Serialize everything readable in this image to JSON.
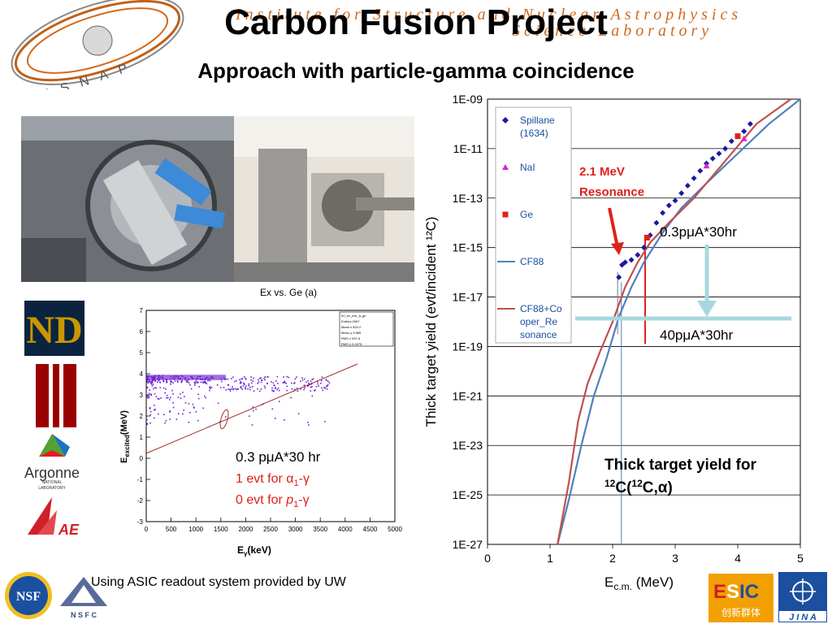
{
  "header": {
    "institute_line1": "Institute for Structure and Nuclear Astrophysics",
    "institute_line2": "Science Laboratory",
    "isnap_logo_letters": "ISNAP"
  },
  "title": "Carbon Fusion Project",
  "subtitle": "Approach with particle-gamma coincidence",
  "left_plot": {
    "title": "Ex vs. Ge (a)",
    "ylabel_main": "E",
    "ylabel_sub": "excited",
    "ylabel_unit": "(MeV)",
    "xlabel_main": "E",
    "xlabel_sub": "γ",
    "xlabel_unit": "(keV)",
    "x_ticks": [
      "0",
      "500",
      "1000",
      "1500",
      "2000",
      "2500",
      "3000",
      "3500",
      "4000",
      "4500",
      "5000"
    ],
    "y_ticks": [
      "7",
      "6",
      "5",
      "4",
      "3",
      "2",
      "1",
      "0",
      "-1",
      "-2",
      "-3"
    ],
    "stats_box": {
      "name": "h2_ex_mix_a_ge",
      "entries": "Entries 2067",
      "mean_x": "Mean x 820.2",
      "mean_y": "Mean y 3.565",
      "rms_x": "RMS x 537.6",
      "rms_y": "RMS y 0.4375"
    },
    "annotation_line1": "0.3 pμA*30 hr",
    "annotation_line2": "1 evt for α",
    "annotation_line2_sub": "1",
    "annotation_line2_tail": "-γ",
    "annotation_line3": "0 evt for ",
    "annotation_line3_p": "p",
    "annotation_line3_sub": "1",
    "annotation_line3_tail": "-γ",
    "annotation_color_red": "#e0201b"
  },
  "chart_data": {
    "type": "line",
    "title": "",
    "xlabel_main": "E",
    "xlabel_sub": "c.m.",
    "xlabel_unit": " (MeV)",
    "ylabel": "Thick target yield (evt/incident ¹²C)",
    "xlim": [
      0,
      5
    ],
    "x_ticks": [
      "0",
      "1",
      "2",
      "3",
      "4",
      "5"
    ],
    "y_log": true,
    "ylim_exponent": [
      -27,
      -9
    ],
    "y_ticks": [
      "1E-09",
      "1E-11",
      "1E-13",
      "1E-15",
      "1E-17",
      "1E-19",
      "1E-21",
      "1E-23",
      "1E-25",
      "1E-27"
    ],
    "legend": [
      {
        "label": "Spillane (1634)",
        "marker": "diamond",
        "color": "#1a1aa0"
      },
      {
        "label": "NaI",
        "marker": "triangle",
        "color": "#e020d0"
      },
      {
        "label": "Ge",
        "marker": "square",
        "color": "#e0201b"
      },
      {
        "label": "CF88",
        "marker": "line",
        "color": "#4f81bd"
      },
      {
        "label": "CF88+Cooper_Resonance",
        "label_lines": [
          "CF88+Co",
          "oper_Re",
          "sonance"
        ],
        "marker": "line",
        "color": "#c0504d"
      }
    ],
    "series": [
      {
        "name": "CF88",
        "color": "#4f81bd",
        "points": [
          [
            1.12,
            -27.0
          ],
          [
            1.3,
            -25.2
          ],
          [
            1.5,
            -23.0
          ],
          [
            1.7,
            -21.0
          ],
          [
            1.9,
            -19.5
          ],
          [
            2.1,
            -17.8
          ],
          [
            2.3,
            -16.6
          ],
          [
            2.5,
            -15.6
          ],
          [
            2.8,
            -14.4
          ],
          [
            3.1,
            -13.4
          ],
          [
            3.5,
            -12.4
          ],
          [
            4.0,
            -11.2
          ],
          [
            4.5,
            -10.0
          ],
          [
            5.0,
            -9.0
          ]
        ]
      },
      {
        "name": "CF88+Cooper_Resonance",
        "color": "#c0504d",
        "points": [
          [
            1.12,
            -27.0
          ],
          [
            1.3,
            -24.5
          ],
          [
            1.45,
            -22.0
          ],
          [
            1.6,
            -20.5
          ],
          [
            1.8,
            -19.2
          ],
          [
            2.0,
            -18.0
          ],
          [
            2.2,
            -16.6
          ],
          [
            2.4,
            -15.6
          ],
          [
            2.6,
            -14.8
          ],
          [
            2.9,
            -14.0
          ],
          [
            3.3,
            -13.0
          ],
          [
            3.8,
            -11.5
          ],
          [
            4.3,
            -10.0
          ],
          [
            4.85,
            -9.0
          ]
        ]
      },
      {
        "name": "Spillane",
        "color": "#1a1aa0",
        "points": [
          [
            2.1,
            -16.2
          ],
          [
            2.15,
            -15.7
          ],
          [
            2.2,
            -15.6
          ],
          [
            2.3,
            -15.5
          ],
          [
            2.4,
            -15.3
          ],
          [
            2.5,
            -15.0
          ],
          [
            2.6,
            -14.5
          ],
          [
            2.7,
            -14.0
          ],
          [
            2.8,
            -13.6
          ],
          [
            2.9,
            -13.3
          ],
          [
            3.0,
            -13.1
          ],
          [
            3.1,
            -12.8
          ],
          [
            3.2,
            -12.5
          ],
          [
            3.3,
            -12.2
          ],
          [
            3.4,
            -11.9
          ],
          [
            3.5,
            -11.6
          ],
          [
            3.6,
            -11.4
          ],
          [
            3.7,
            -11.2
          ],
          [
            3.8,
            -11.0
          ],
          [
            3.9,
            -10.7
          ],
          [
            4.0,
            -10.5
          ],
          [
            4.1,
            -10.3
          ],
          [
            4.2,
            -10.0
          ]
        ]
      },
      {
        "name": "NaI",
        "color": "#e020d0",
        "points": [
          [
            3.5,
            -11.7
          ],
          [
            4.1,
            -10.6
          ]
        ]
      },
      {
        "name": "Ge",
        "color": "#e0201b",
        "points": [
          [
            2.55,
            -14.6
          ],
          [
            4.0,
            -10.5
          ]
        ]
      }
    ],
    "annotations": {
      "resonance": "2.1 MeV\nResonance",
      "resonance_line1": "2.1 MeV",
      "resonance_line2": "Resonance",
      "upper_sensitivity": "0.3pμA*30hr",
      "lower_sensitivity": "40pμA*30hr",
      "thick_target_line1": "Thick target yield for",
      "thick_target_line2_sup": "12",
      "thick_target_line2_a": "C(",
      "thick_target_line2_sup2": "12",
      "thick_target_line2_b": "C,α)"
    }
  },
  "bottom_note": "Using ASIC readout system provided by UW",
  "logos": {
    "nsf": "NSF",
    "nsfc": "N S F C",
    "argonne": "Argonne",
    "argonne_sub1": "NATIONAL",
    "argonne_sub2": "LABORATORY",
    "imp": "AE",
    "esic_a": "E",
    "esic_b": "S",
    "esic_c": "IC",
    "esic_cn": "创新群体",
    "jina": "J I N A"
  },
  "colors": {
    "banner_orange": "#d1691e",
    "annotation_red": "#e0201b",
    "arrow_cyan": "#a8d8de",
    "nd_navy": "#0c2340",
    "iu_crimson": "#990000"
  }
}
